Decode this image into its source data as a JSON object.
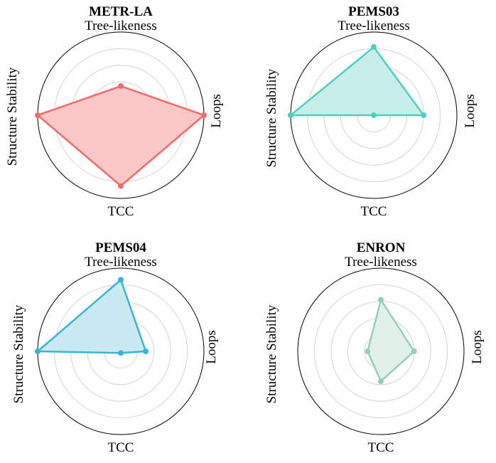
{
  "chart_data": [
    {
      "type": "radar",
      "title": "METR-LA",
      "axes": [
        "Tree-likeness",
        "Loops",
        "TCC",
        "Structure Stability"
      ],
      "values": [
        0.35,
        1.0,
        0.85,
        1.0
      ],
      "range": [
        0,
        1
      ],
      "rings": [
        0.2,
        0.4,
        0.6,
        0.8
      ],
      "grid": true,
      "color": "#f26b6b",
      "fill": "#fcc4c4"
    },
    {
      "type": "radar",
      "title": "PEMS03",
      "axes": [
        "Tree-likeness",
        "Loops",
        "TCC",
        "Structure Stability"
      ],
      "values": [
        0.82,
        0.6,
        0.0,
        1.0
      ],
      "range": [
        0,
        1
      ],
      "rings": [
        0.2,
        0.4,
        0.6,
        0.8
      ],
      "grid": true,
      "color": "#4fcfc0",
      "fill": "#c4ede8"
    },
    {
      "type": "radar",
      "title": "PEMS04",
      "axes": [
        "Tree-likeness",
        "Loops",
        "TCC",
        "Structure Stability"
      ],
      "values": [
        0.86,
        0.3,
        0.02,
        1.0
      ],
      "range": [
        0,
        1
      ],
      "rings": [
        0.2,
        0.4,
        0.6,
        0.8
      ],
      "grid": true,
      "color": "#3bb4d4",
      "fill": "#c6e8f2"
    },
    {
      "type": "radar",
      "title": "ENRON",
      "axes": [
        "Tree-likeness",
        "Loops",
        "TCC",
        "Structure Stability"
      ],
      "values": [
        0.62,
        0.4,
        0.36,
        0.16
      ],
      "range": [
        0,
        1
      ],
      "rings": [
        0.2,
        0.4,
        0.6,
        0.8
      ],
      "grid": true,
      "color": "#96d0b4",
      "fill": "#dff0e6"
    }
  ]
}
